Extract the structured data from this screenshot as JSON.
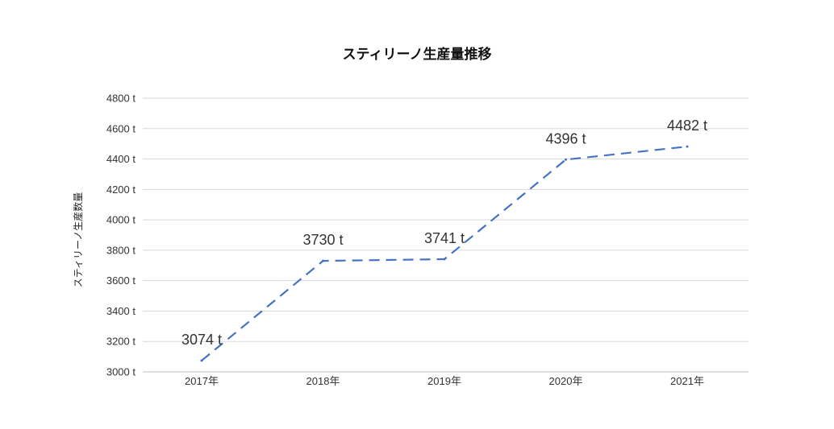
{
  "chart_data": {
    "type": "line",
    "title": "スティリーノ生産量推移",
    "xlabel": "",
    "ylabel": "スティリーノ生産数量",
    "categories": [
      "2017年",
      "2018年",
      "2019年",
      "2020年",
      "2021年"
    ],
    "series": [
      {
        "values": [
          3074,
          3730,
          3741,
          4396,
          4482
        ],
        "labels": [
          "3074 t",
          "3730 t",
          "3741 t",
          "4396 t",
          "4482 t"
        ]
      }
    ],
    "ylim": [
      3000,
      4800
    ],
    "y_ticks": [
      3000,
      3200,
      3400,
      3600,
      3800,
      4000,
      4200,
      4400,
      4600,
      4800
    ],
    "y_tick_labels": [
      "3000 t",
      "3200 t",
      "3400 t",
      "3600 t",
      "3800 t",
      "4000 t",
      "4200 t",
      "4400 t",
      "4600 t",
      "4800 t"
    ],
    "grid": true,
    "legend": "none",
    "line_style": "dashed",
    "colors": {
      "series": "#4472c4",
      "grid": "#d9d9d9"
    }
  }
}
